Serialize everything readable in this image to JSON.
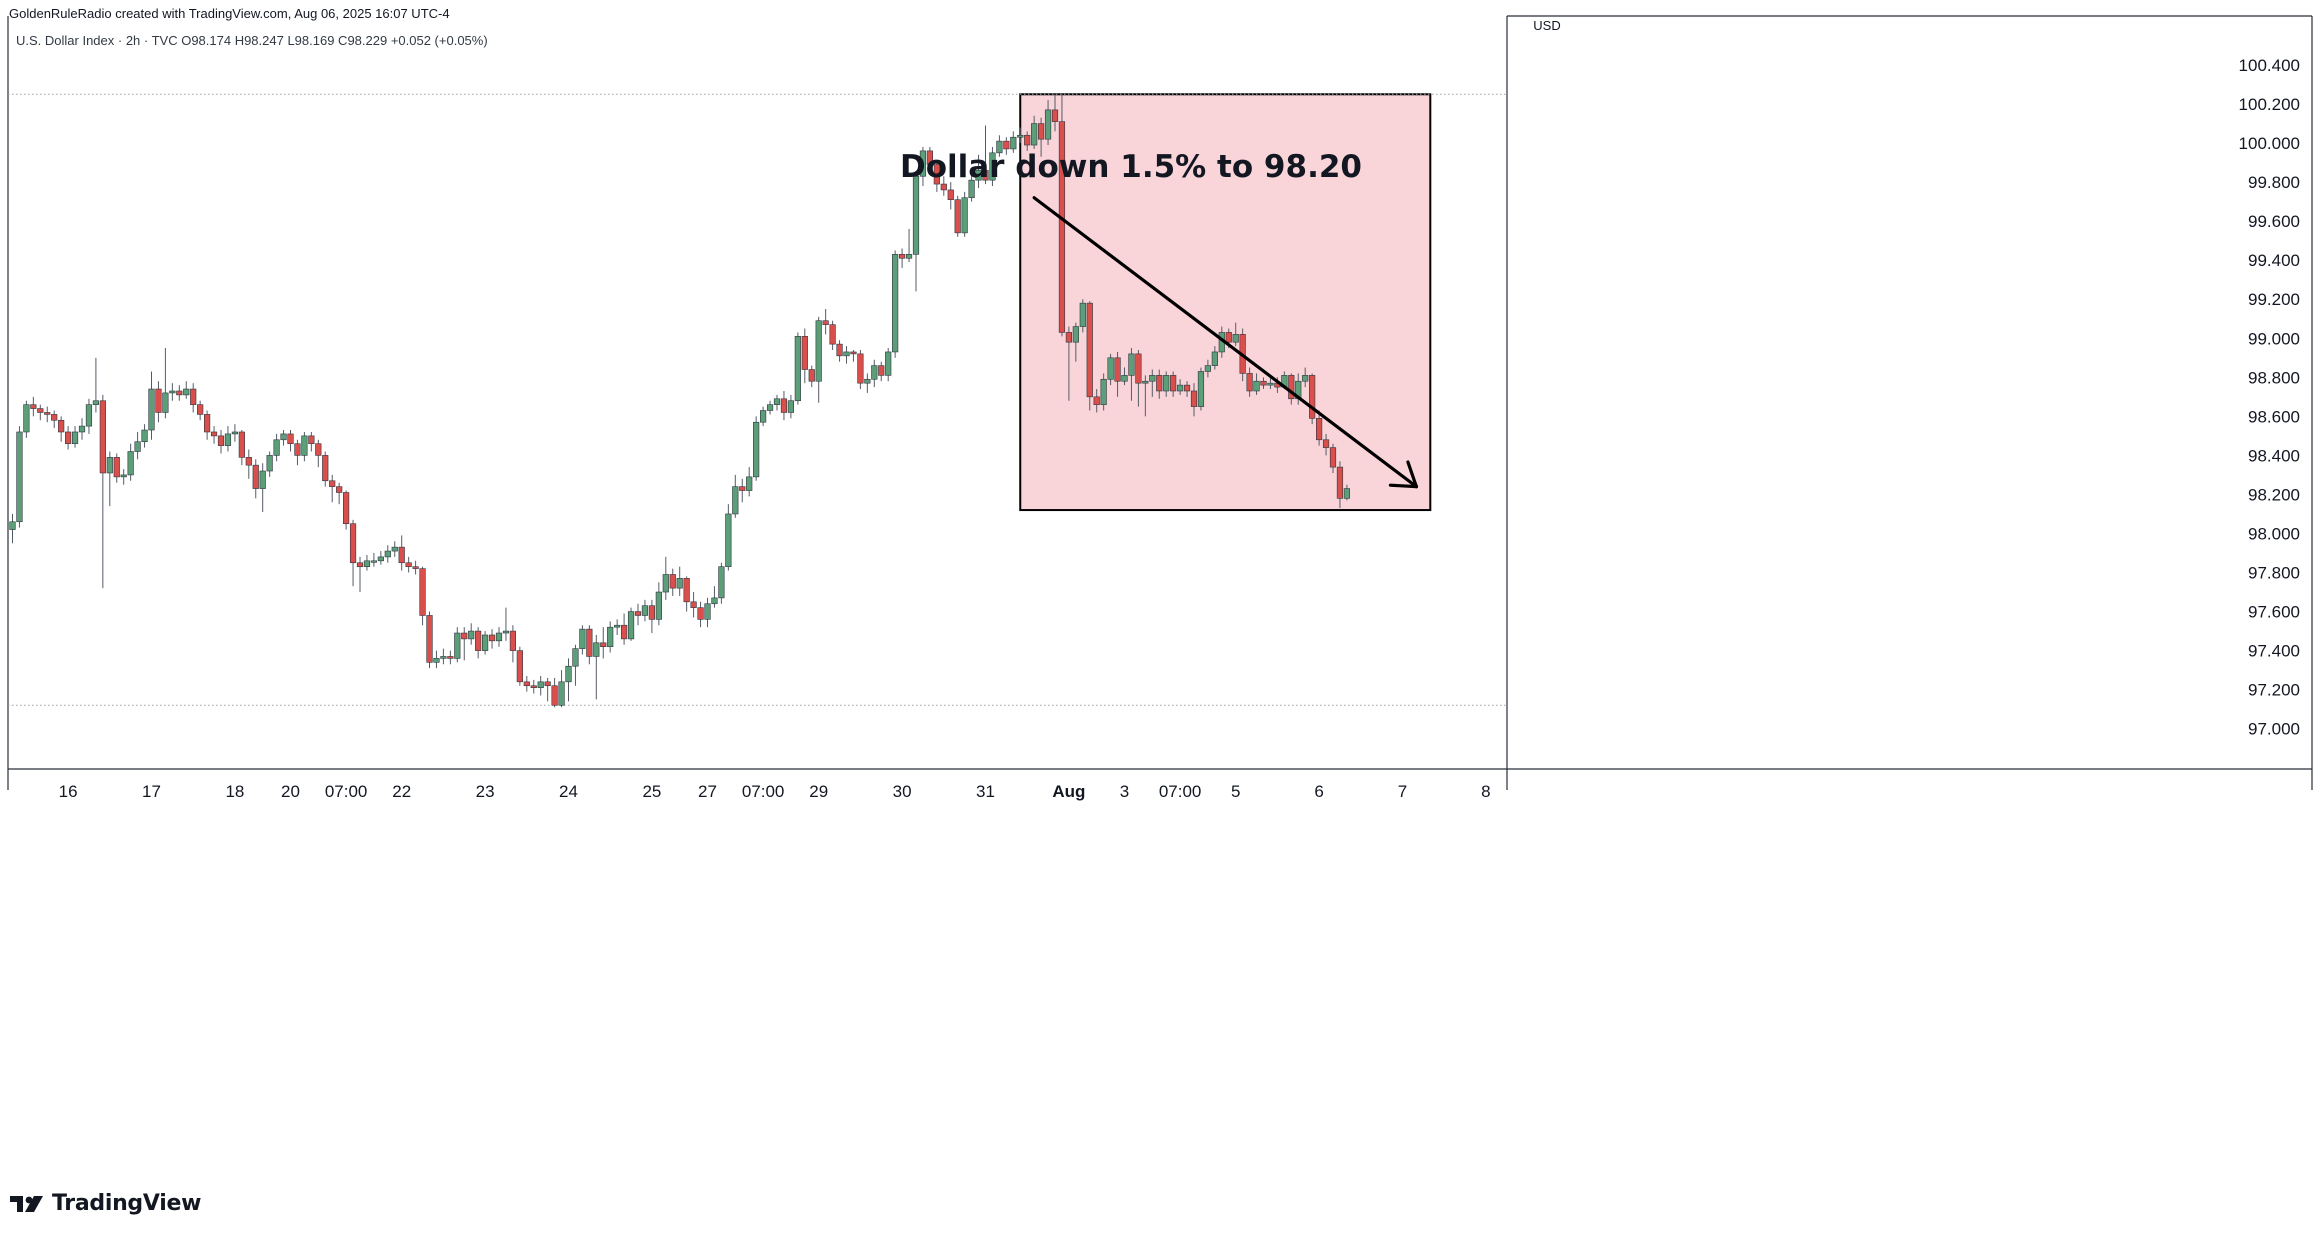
{
  "header": {
    "created_by": "GoldenRuleRadio created with TradingView.com, Aug 06, 2025 16:07 UTC-4",
    "symbol_line": "U.S. Dollar Index · 2h · TVC  O98.174  H98.247  L98.169  C98.229  +0.052 (+0.05%)"
  },
  "brand": {
    "name": "TradingView",
    "icon": "tradingview-logo-icon"
  },
  "colors": {
    "up": "#5b9e78",
    "down": "#d94f4b",
    "box_fill": "#f9d5da",
    "grid_dotted": "#9aa0a6",
    "axis_text": "#131722"
  },
  "chart_data": {
    "type": "candlestick",
    "currency": "USD",
    "y_ticks": [
      "97.000",
      "97.200",
      "97.400",
      "97.600",
      "97.800",
      "98.000",
      "98.200",
      "98.400",
      "98.600",
      "98.800",
      "99.000",
      "99.200",
      "99.400",
      "99.600",
      "99.800",
      "100.000",
      "100.200",
      "100.400"
    ],
    "ylim": [
      96.9,
      100.45
    ],
    "x_ticks": [
      {
        "label": "16",
        "i": 8
      },
      {
        "label": "17",
        "i": 20
      },
      {
        "label": "18",
        "i": 32
      },
      {
        "label": "20",
        "i": 40
      },
      {
        "label": "07:00",
        "i": 48
      },
      {
        "label": "22",
        "i": 56
      },
      {
        "label": "23",
        "i": 68
      },
      {
        "label": "24",
        "i": 80
      },
      {
        "label": "25",
        "i": 92
      },
      {
        "label": "27",
        "i": 100
      },
      {
        "label": "07:00",
        "i": 108
      },
      {
        "label": "29",
        "i": 116
      },
      {
        "label": "30",
        "i": 128
      },
      {
        "label": "31",
        "i": 140
      },
      {
        "label": "Aug",
        "i": 152,
        "bold": true
      },
      {
        "label": "3",
        "i": 160
      },
      {
        "label": "07:00",
        "i": 168
      },
      {
        "label": "5",
        "i": 176
      },
      {
        "label": "6",
        "i": 188
      },
      {
        "label": "7",
        "i": 200
      },
      {
        "label": "8",
        "i": 212
      }
    ],
    "candles": [
      [
        98.02,
        98.06,
        97.95,
        98.1
      ],
      [
        98.06,
        98.52,
        98.03,
        98.55
      ],
      [
        98.52,
        98.66,
        98.49,
        98.68
      ],
      [
        98.66,
        98.64,
        98.6,
        98.7
      ],
      [
        98.64,
        98.62,
        98.58,
        98.66
      ],
      [
        98.62,
        98.61,
        98.57,
        98.65
      ],
      [
        98.61,
        98.58,
        98.54,
        98.63
      ],
      [
        98.58,
        98.52,
        98.47,
        98.6
      ],
      [
        98.52,
        98.46,
        98.43,
        98.55
      ],
      [
        98.46,
        98.52,
        98.44,
        98.55
      ],
      [
        98.52,
        98.55,
        98.48,
        98.59
      ],
      [
        98.55,
        98.66,
        98.51,
        98.69
      ],
      [
        98.66,
        98.68,
        98.62,
        98.9
      ],
      [
        98.68,
        98.31,
        97.72,
        98.71
      ],
      [
        98.31,
        98.39,
        98.14,
        98.42
      ],
      [
        98.39,
        98.29,
        98.26,
        98.41
      ],
      [
        98.29,
        98.3,
        98.25,
        98.33
      ],
      [
        98.3,
        98.42,
        98.27,
        98.46
      ],
      [
        98.42,
        98.47,
        98.38,
        98.52
      ],
      [
        98.47,
        98.53,
        98.44,
        98.56
      ],
      [
        98.53,
        98.74,
        98.48,
        98.83
      ],
      [
        98.74,
        98.62,
        98.57,
        98.78
      ],
      [
        98.62,
        98.72,
        98.59,
        98.95
      ],
      [
        98.72,
        98.73,
        98.68,
        98.77
      ],
      [
        98.73,
        98.71,
        98.68,
        98.76
      ],
      [
        98.71,
        98.74,
        98.69,
        98.78
      ],
      [
        98.74,
        98.66,
        98.62,
        98.77
      ],
      [
        98.66,
        98.61,
        98.58,
        98.68
      ],
      [
        98.61,
        98.52,
        98.48,
        98.63
      ],
      [
        98.52,
        98.5,
        98.46,
        98.55
      ],
      [
        98.5,
        98.45,
        98.41,
        98.53
      ],
      [
        98.45,
        98.51,
        98.42,
        98.55
      ],
      [
        98.51,
        98.52,
        98.47,
        98.56
      ],
      [
        98.52,
        98.39,
        98.35,
        98.53
      ],
      [
        98.39,
        98.35,
        98.28,
        98.43
      ],
      [
        98.35,
        98.23,
        98.18,
        98.38
      ],
      [
        98.23,
        98.32,
        98.11,
        98.36
      ],
      [
        98.32,
        98.4,
        98.29,
        98.42
      ],
      [
        98.4,
        98.48,
        98.37,
        98.51
      ],
      [
        98.48,
        98.51,
        98.45,
        98.53
      ],
      [
        98.51,
        98.46,
        98.42,
        98.53
      ],
      [
        98.46,
        98.4,
        98.35,
        98.48
      ],
      [
        98.4,
        98.5,
        98.37,
        98.52
      ],
      [
        98.5,
        98.46,
        98.42,
        98.52
      ],
      [
        98.46,
        98.4,
        98.34,
        98.48
      ],
      [
        98.4,
        98.27,
        98.24,
        98.42
      ],
      [
        98.27,
        98.24,
        98.16,
        98.3
      ],
      [
        98.24,
        98.21,
        98.15,
        98.26
      ],
      [
        98.21,
        98.05,
        98.02,
        98.22
      ],
      [
        98.05,
        97.85,
        97.73,
        98.07
      ],
      [
        97.85,
        97.83,
        97.7,
        97.88
      ],
      [
        97.83,
        97.86,
        97.81,
        97.89
      ],
      [
        97.86,
        97.86,
        97.83,
        97.9
      ],
      [
        97.86,
        97.88,
        97.84,
        97.91
      ],
      [
        97.88,
        97.91,
        97.85,
        97.94
      ],
      [
        97.91,
        97.93,
        97.88,
        97.96
      ],
      [
        97.93,
        97.85,
        97.81,
        97.99
      ],
      [
        97.85,
        97.83,
        97.8,
        97.88
      ],
      [
        97.83,
        97.82,
        97.79,
        97.86
      ],
      [
        97.82,
        97.58,
        97.53,
        97.83
      ],
      [
        97.58,
        97.34,
        97.31,
        97.6
      ],
      [
        97.34,
        97.36,
        97.31,
        97.4
      ],
      [
        97.36,
        97.37,
        97.33,
        97.41
      ],
      [
        97.37,
        97.36,
        97.33,
        97.4
      ],
      [
        97.36,
        97.49,
        97.34,
        97.52
      ],
      [
        97.49,
        97.46,
        97.35,
        97.52
      ],
      [
        97.46,
        97.5,
        97.43,
        97.54
      ],
      [
        97.5,
        97.4,
        97.36,
        97.52
      ],
      [
        97.4,
        97.48,
        97.38,
        97.5
      ],
      [
        97.48,
        97.45,
        97.41,
        97.51
      ],
      [
        97.45,
        97.49,
        97.42,
        97.52
      ],
      [
        97.49,
        97.5,
        97.45,
        97.62
      ],
      [
        97.5,
        97.4,
        97.34,
        97.53
      ],
      [
        97.4,
        97.24,
        97.22,
        97.42
      ],
      [
        97.24,
        97.22,
        97.19,
        97.27
      ],
      [
        97.22,
        97.21,
        97.18,
        97.25
      ],
      [
        97.21,
        97.24,
        97.17,
        97.27
      ],
      [
        97.24,
        97.22,
        97.14,
        97.26
      ],
      [
        97.22,
        97.12,
        97.11,
        97.26
      ],
      [
        97.12,
        97.24,
        97.11,
        97.3
      ],
      [
        97.24,
        97.32,
        97.14,
        97.36
      ],
      [
        97.32,
        97.41,
        97.22,
        97.43
      ],
      [
        97.41,
        97.51,
        97.38,
        97.53
      ],
      [
        97.51,
        97.37,
        97.33,
        97.53
      ],
      [
        97.37,
        97.44,
        97.15,
        97.48
      ],
      [
        97.44,
        97.42,
        97.36,
        97.52
      ],
      [
        97.42,
        97.52,
        97.39,
        97.55
      ],
      [
        97.52,
        97.53,
        97.48,
        97.56
      ],
      [
        97.53,
        97.46,
        97.43,
        97.59
      ],
      [
        97.46,
        97.6,
        97.45,
        97.62
      ],
      [
        97.6,
        97.58,
        97.53,
        97.64
      ],
      [
        97.58,
        97.63,
        97.55,
        97.66
      ],
      [
        97.63,
        97.56,
        97.49,
        97.66
      ],
      [
        97.56,
        97.7,
        97.53,
        97.75
      ],
      [
        97.7,
        97.79,
        97.66,
        97.88
      ],
      [
        97.79,
        97.72,
        97.68,
        97.82
      ],
      [
        97.72,
        97.77,
        97.68,
        97.83
      ],
      [
        97.77,
        97.65,
        97.6,
        97.78
      ],
      [
        97.65,
        97.62,
        97.57,
        97.7
      ],
      [
        97.62,
        97.56,
        97.52,
        97.65
      ],
      [
        97.56,
        97.64,
        97.52,
        97.67
      ],
      [
        97.64,
        97.67,
        97.62,
        97.73
      ],
      [
        97.67,
        97.83,
        97.64,
        97.85
      ],
      [
        97.83,
        98.1,
        97.81,
        98.15
      ],
      [
        98.1,
        98.24,
        98.08,
        98.3
      ],
      [
        98.24,
        98.22,
        98.16,
        98.28
      ],
      [
        98.22,
        98.29,
        98.19,
        98.34
      ],
      [
        98.29,
        98.57,
        98.27,
        98.6
      ],
      [
        98.57,
        98.63,
        98.55,
        98.65
      ],
      [
        98.63,
        98.66,
        98.61,
        98.68
      ],
      [
        98.66,
        98.69,
        98.63,
        98.71
      ],
      [
        98.69,
        98.62,
        98.58,
        98.73
      ],
      [
        98.62,
        98.68,
        98.59,
        98.71
      ],
      [
        98.68,
        99.01,
        98.66,
        99.03
      ],
      [
        99.01,
        98.84,
        98.77,
        99.05
      ],
      [
        98.84,
        98.78,
        98.75,
        98.86
      ],
      [
        98.78,
        99.09,
        98.67,
        99.11
      ],
      [
        99.09,
        99.07,
        99.02,
        99.15
      ],
      [
        99.07,
        98.97,
        98.94,
        99.09
      ],
      [
        98.97,
        98.91,
        98.88,
        98.99
      ],
      [
        98.91,
        98.93,
        98.87,
        98.96
      ],
      [
        98.93,
        98.92,
        98.88,
        98.94
      ],
      [
        98.92,
        98.77,
        98.74,
        98.94
      ],
      [
        98.77,
        98.79,
        98.72,
        98.82
      ],
      [
        98.79,
        98.86,
        98.75,
        98.89
      ],
      [
        98.86,
        98.81,
        98.78,
        98.88
      ],
      [
        98.81,
        98.93,
        98.78,
        98.95
      ],
      [
        98.93,
        99.43,
        98.9,
        99.45
      ],
      [
        99.43,
        99.41,
        99.36,
        99.46
      ],
      [
        99.41,
        99.43,
        99.39,
        99.56
      ],
      [
        99.43,
        99.83,
        99.24,
        99.85
      ],
      [
        99.83,
        99.96,
        99.78,
        99.98
      ],
      [
        99.96,
        99.89,
        99.86,
        99.98
      ],
      [
        99.89,
        99.79,
        99.75,
        99.91
      ],
      [
        99.79,
        99.76,
        99.73,
        99.83
      ],
      [
        99.76,
        99.71,
        99.66,
        99.8
      ],
      [
        99.71,
        99.54,
        99.52,
        99.73
      ],
      [
        99.54,
        99.72,
        99.52,
        99.75
      ],
      [
        99.72,
        99.81,
        99.7,
        99.85
      ],
      [
        99.81,
        99.86,
        99.77,
        99.94
      ],
      [
        99.86,
        99.81,
        99.79,
        100.09
      ],
      [
        99.81,
        99.95,
        99.78,
        99.98
      ],
      [
        99.95,
        100.01,
        99.93,
        100.04
      ],
      [
        100.01,
        99.97,
        99.94,
        100.03
      ],
      [
        99.97,
        100.03,
        99.95,
        100.06
      ],
      [
        100.03,
        100.04,
        100.0,
        100.08
      ],
      [
        100.04,
        99.99,
        99.96,
        100.06
      ],
      [
        99.99,
        100.1,
        99.97,
        100.14
      ],
      [
        100.1,
        100.02,
        99.93,
        100.13
      ],
      [
        100.02,
        100.17,
        99.99,
        100.22
      ],
      [
        100.17,
        100.11,
        100.06,
        100.25
      ],
      [
        100.11,
        99.03,
        99.01,
        100.25
      ],
      [
        99.03,
        98.98,
        98.68,
        99.06
      ],
      [
        98.98,
        99.06,
        98.88,
        99.08
      ],
      [
        99.06,
        99.18,
        99.03,
        99.2
      ],
      [
        99.18,
        98.7,
        98.63,
        99.19
      ],
      [
        98.7,
        98.66,
        98.62,
        98.74
      ],
      [
        98.66,
        98.79,
        98.63,
        98.82
      ],
      [
        98.79,
        98.9,
        98.76,
        98.92
      ],
      [
        98.9,
        98.78,
        98.7,
        98.93
      ],
      [
        98.78,
        98.81,
        98.76,
        98.85
      ],
      [
        98.81,
        98.92,
        98.68,
        98.95
      ],
      [
        98.92,
        98.77,
        98.65,
        98.94
      ],
      [
        98.77,
        98.78,
        98.6,
        98.81
      ],
      [
        98.78,
        98.81,
        98.7,
        98.84
      ],
      [
        98.81,
        98.73,
        98.69,
        98.84
      ],
      [
        98.73,
        98.81,
        98.7,
        98.83
      ],
      [
        98.81,
        98.73,
        98.7,
        98.83
      ],
      [
        98.73,
        98.76,
        98.71,
        98.79
      ],
      [
        98.76,
        98.73,
        98.7,
        98.78
      ],
      [
        98.73,
        98.65,
        98.6,
        98.77
      ],
      [
        98.65,
        98.83,
        98.63,
        98.85
      ],
      [
        98.83,
        98.86,
        98.8,
        98.89
      ],
      [
        98.86,
        98.93,
        98.84,
        98.96
      ],
      [
        98.93,
        99.03,
        98.9,
        99.06
      ],
      [
        99.03,
        98.98,
        98.95,
        99.05
      ],
      [
        98.98,
        99.02,
        98.96,
        99.08
      ],
      [
        99.02,
        98.82,
        98.78,
        99.05
      ],
      [
        98.82,
        98.73,
        98.7,
        98.85
      ],
      [
        98.73,
        98.78,
        98.71,
        98.82
      ],
      [
        98.78,
        98.76,
        98.74,
        98.8
      ],
      [
        98.76,
        98.77,
        98.74,
        98.8
      ],
      [
        98.77,
        98.75,
        98.72,
        98.8
      ],
      [
        98.75,
        98.81,
        98.74,
        98.83
      ],
      [
        98.81,
        98.69,
        98.66,
        98.82
      ],
      [
        98.69,
        98.78,
        98.66,
        98.82
      ],
      [
        98.78,
        98.81,
        98.75,
        98.85
      ],
      [
        98.81,
        98.59,
        98.56,
        98.82
      ],
      [
        98.59,
        98.48,
        98.45,
        98.63
      ],
      [
        98.48,
        98.44,
        98.4,
        98.51
      ],
      [
        98.44,
        98.34,
        98.31,
        98.46
      ],
      [
        98.34,
        98.18,
        98.13,
        98.37
      ],
      [
        98.18,
        98.23,
        98.17,
        98.25
      ]
    ],
    "dotted_levels": [
      100.25,
      97.12
    ],
    "annotation": {
      "text": "Dollar down 1.5% to 98.20",
      "i": 96,
      "price": 99.8
    },
    "highlight_box": {
      "i_start": 145,
      "i_end": 204,
      "price_top": 100.25,
      "price_bottom": 98.12
    },
    "trend_arrow": {
      "from_i": 147,
      "from_price": 99.72,
      "to_i": 202,
      "to_price": 98.24
    }
  }
}
